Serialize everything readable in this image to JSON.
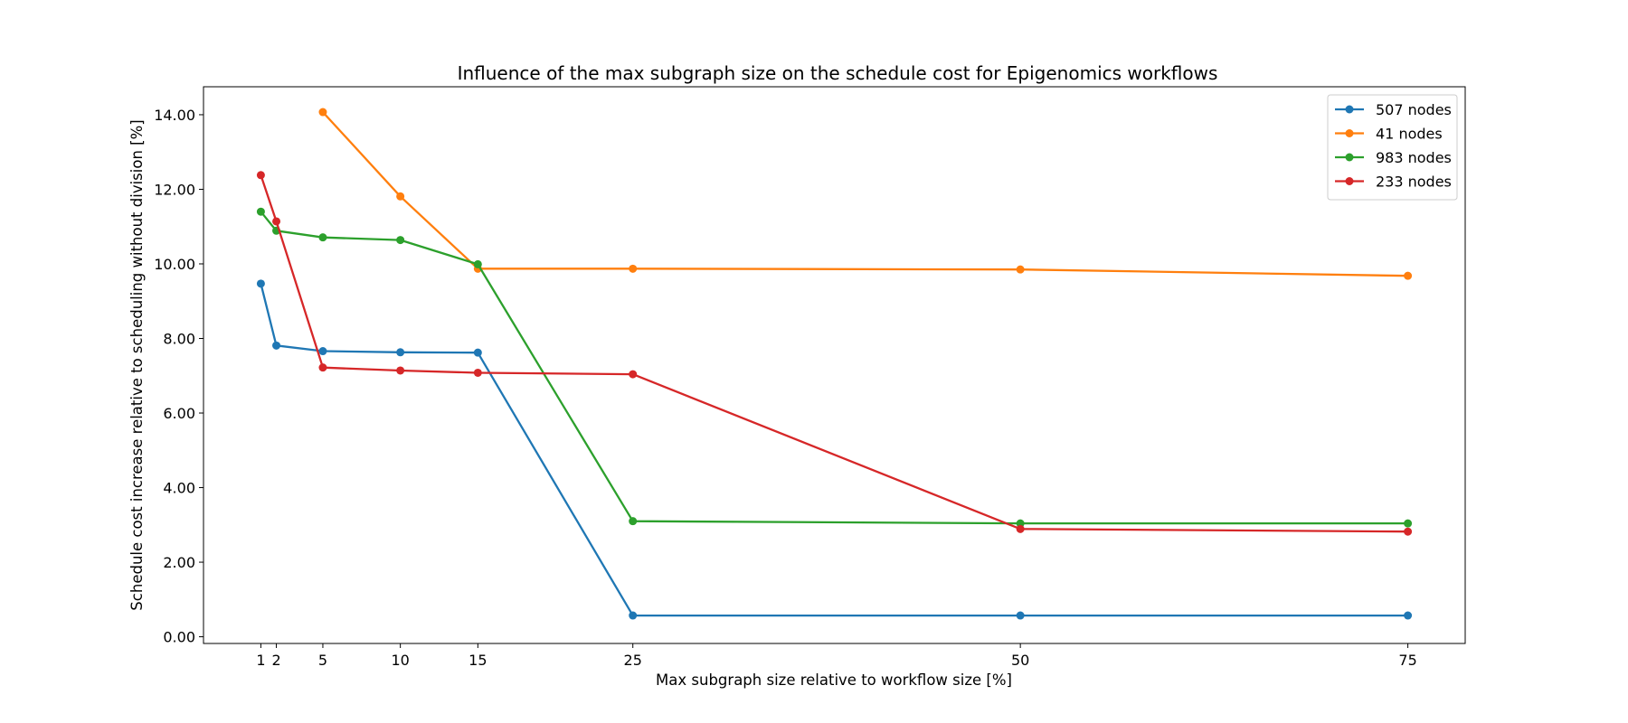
{
  "chart_data": {
    "type": "line",
    "title": "Influence of the max subgraph size on the schedule cost for Epigenomics workflows",
    "xlabel": "Max subgraph size relative to workflow size [%]",
    "ylabel": "Schedule cost increase relative to scheduling without division [%]",
    "x_ticks": [
      1,
      2,
      5,
      10,
      15,
      25,
      50,
      75
    ],
    "y_ticks": [
      "0.00",
      "2.00",
      "4.00",
      "6.00",
      "8.00",
      "10.00",
      "12.00",
      "14.00"
    ],
    "xlim": [
      -2.7,
      78.7
    ],
    "ylim": [
      -0.18,
      14.75
    ],
    "grid": false,
    "legend_position": "top-right",
    "series": [
      {
        "name": "507 nodes",
        "color": "#1f77b4",
        "x": [
          1,
          2,
          5,
          10,
          15,
          25,
          50,
          75
        ],
        "y": [
          9.47,
          7.81,
          7.66,
          7.63,
          7.62,
          0.57,
          0.57,
          0.57
        ]
      },
      {
        "name": "41 nodes",
        "color": "#ff7f0e",
        "x": [
          5,
          10,
          15,
          25,
          50,
          75
        ],
        "y": [
          14.07,
          11.81,
          9.87,
          9.87,
          9.85,
          9.68
        ]
      },
      {
        "name": "983 nodes",
        "color": "#2ca02c",
        "x": [
          1,
          2,
          5,
          10,
          15,
          25,
          50,
          75
        ],
        "y": [
          11.4,
          10.89,
          10.71,
          10.64,
          9.99,
          3.1,
          3.04,
          3.04
        ]
      },
      {
        "name": "233 nodes",
        "color": "#d62728",
        "x": [
          1,
          2,
          5,
          10,
          15,
          25,
          50,
          75
        ],
        "y": [
          12.38,
          11.14,
          7.22,
          7.14,
          7.08,
          7.04,
          2.89,
          2.82
        ]
      }
    ]
  }
}
